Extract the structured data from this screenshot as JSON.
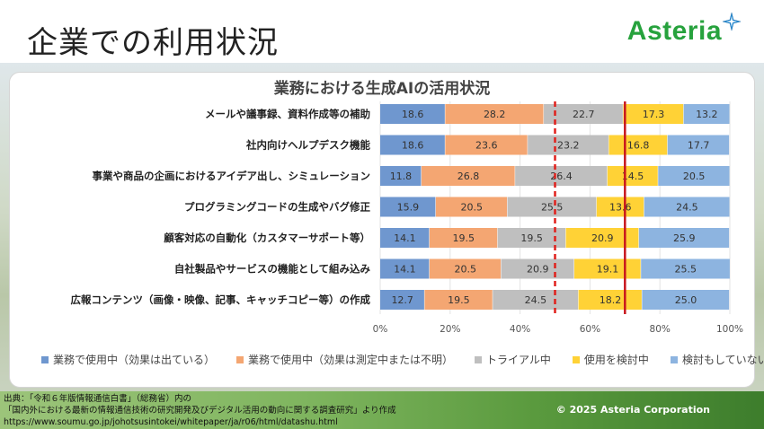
{
  "header": {
    "page_title": "企業での利用状況",
    "logo_text": "Asteria"
  },
  "footer": {
    "source_line1": "出典：「令和６年版情報通信白書」（総務省）内の",
    "source_line2": "「国内外における最新の情報通信技術の研究開発及びデジタル活用の動向に関する調査研究」より作成",
    "source_line3": "https://www.soumu.go.jp/johotsusintokei/whitepaper/ja/r06/html/datashu.html",
    "copyright": "© 2025 Asteria Corporation"
  },
  "colors": {
    "series": [
      "#6f97cf",
      "#f4a672",
      "#bfbfbf",
      "#ffd236",
      "#8db4e0"
    ],
    "dashed_line": "#e0201c",
    "solid_line": "#c8161d",
    "brand": "#27a23d"
  },
  "chart_data": {
    "type": "bar",
    "orientation": "horizontal",
    "stacked": "100%",
    "title": "業務における生成AIの活用状況",
    "categories": [
      "メールや議事録、資料作成等の補助",
      "社内向けヘルプデスク機能",
      "事業や商品の企画におけるアイデア出し、シミュレーション",
      "プログラミングコードの生成やバグ修正",
      "顧客対応の自動化（カスタマーサポート等）",
      "自社製品やサービスの機能として組み込み",
      "広報コンテンツ（画像・映像、記事、キャッチコピー等）の作成"
    ],
    "series": [
      {
        "name": "業務で使用中（効果は出ている）",
        "values": [
          18.6,
          18.6,
          11.8,
          15.9,
          14.1,
          14.1,
          12.7
        ]
      },
      {
        "name": "業務で使用中（効果は測定中または不明）",
        "values": [
          28.2,
          23.6,
          26.8,
          20.5,
          19.5,
          20.5,
          19.5
        ]
      },
      {
        "name": "トライアル中",
        "values": [
          22.7,
          23.2,
          26.4,
          25.5,
          19.5,
          20.9,
          24.5
        ]
      },
      {
        "name": "使用を検討中",
        "values": [
          17.3,
          16.8,
          14.5,
          13.6,
          20.9,
          19.1,
          18.2
        ]
      },
      {
        "name": "検討もしていない",
        "values": [
          13.2,
          17.7,
          20.5,
          24.5,
          25.9,
          25.5,
          25.0
        ]
      }
    ],
    "label_texts": [
      [
        "18.6",
        "28.2",
        "22.7",
        "17.3",
        "13.2"
      ],
      [
        "18.6",
        "23.6",
        "23.2",
        "16.8",
        "17.7"
      ],
      [
        "11.8",
        "26.8",
        "26.4",
        "14.5",
        "20.5"
      ],
      [
        "15.9",
        "20.5",
        "25.5",
        "13.6",
        "24.5"
      ],
      [
        "14.1",
        "19.5",
        "19.5",
        "20.9",
        "25.9"
      ],
      [
        "14.1",
        "20.5",
        "20.9",
        "19.1",
        "25.5"
      ],
      [
        "12.7",
        "19.5",
        "24.5",
        "18.2",
        "25.0"
      ]
    ],
    "x_ticks": [
      "0%",
      "20%",
      "40%",
      "60%",
      "80%",
      "100%"
    ],
    "xlim": [
      0,
      100
    ],
    "reference_lines": [
      {
        "value": 50,
        "style": "dashed"
      },
      {
        "value": 70,
        "style": "solid"
      }
    ],
    "legend_position": "bottom"
  }
}
